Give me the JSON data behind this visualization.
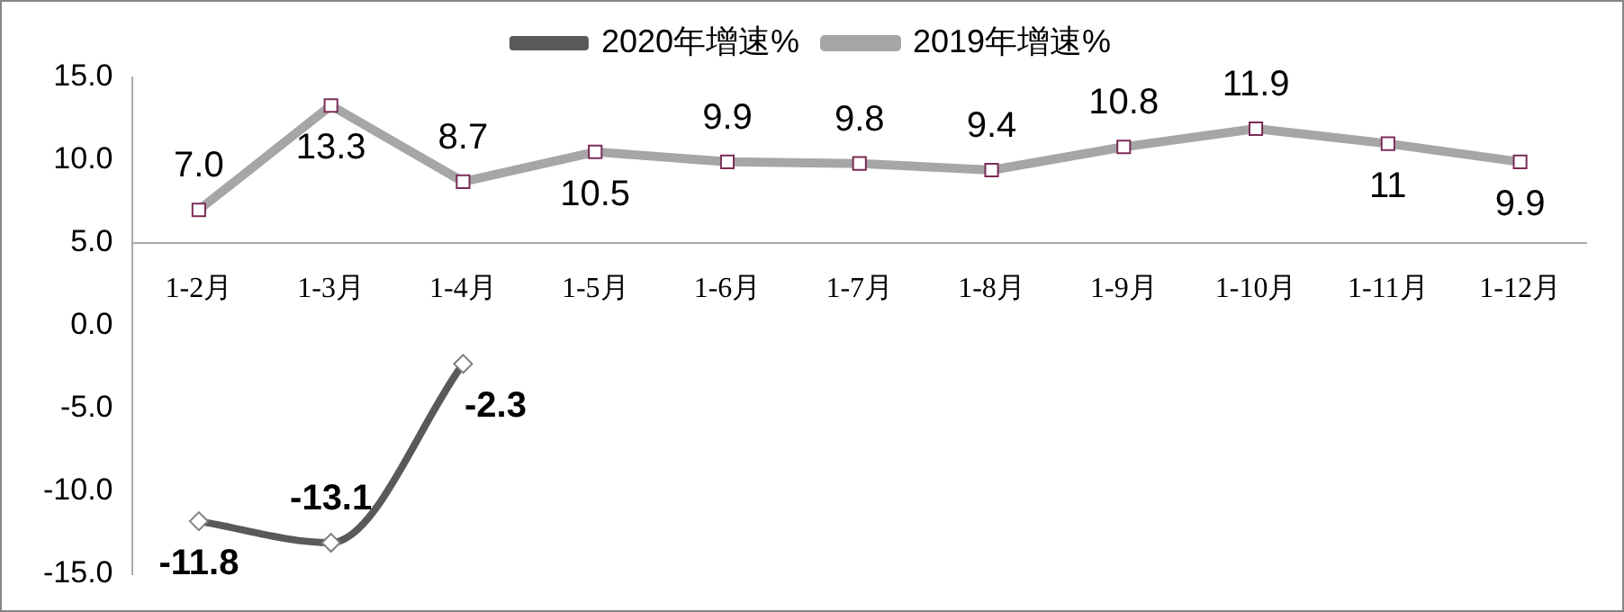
{
  "chart_data": {
    "type": "line",
    "categories": [
      "1-2月",
      "1-3月",
      "1-4月",
      "1-5月",
      "1-6月",
      "1-7月",
      "1-8月",
      "1-9月",
      "1-10月",
      "1-11月",
      "1-12月"
    ],
    "series": [
      {
        "name": "2020年增速%",
        "color": "#595959",
        "marker": "diamond",
        "values": [
          -11.8,
          -13.1,
          -2.3,
          null,
          null,
          null,
          null,
          null,
          null,
          null,
          null
        ],
        "value_labels": [
          "-11.8",
          "-13.1",
          "-2.3",
          null,
          null,
          null,
          null,
          null,
          null,
          null,
          null
        ]
      },
      {
        "name": "2019年增速%",
        "color": "#a6a6a6",
        "marker": "square",
        "values": [
          7.0,
          13.3,
          8.7,
          10.5,
          9.9,
          9.8,
          9.4,
          10.8,
          11.9,
          11,
          9.9
        ],
        "value_labels": [
          "7.0",
          "13.3",
          "8.7",
          "10.5",
          "9.9",
          "9.8",
          "9.4",
          "10.8",
          "11.9",
          "11",
          "9.9"
        ]
      }
    ],
    "ylim": [
      -15,
      15
    ],
    "yticks": [
      {
        "value": -15,
        "label": "-15.0"
      },
      {
        "value": -10,
        "label": "-10.0"
      },
      {
        "value": -5,
        "label": "-5.0"
      },
      {
        "value": 0,
        "label": "0.0"
      },
      {
        "value": 5,
        "label": "5.0"
      },
      {
        "value": 10,
        "label": "10.0"
      },
      {
        "value": 15,
        "label": "15.0"
      }
    ],
    "grid": false,
    "legend": "top"
  }
}
